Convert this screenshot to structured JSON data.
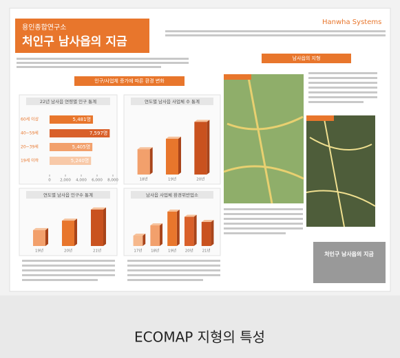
{
  "header": {
    "org": "용인종합연구소",
    "title": "처인구 남사읍의 지금",
    "brand": "Hanwha Systems"
  },
  "sections": {
    "left": "인구/사업체 증가에 따른 환경 변화",
    "right": "남사읍의 지형",
    "footer": "처인구 남사읍의 지금"
  },
  "caption": "ECOMAP 지형의 특성",
  "charts": [
    {
      "type": "hbar",
      "title": "22년 남사읍 연령별 인구 통계",
      "categories": [
        "60세 이상",
        "40~59세",
        "20~39세",
        "19세 이하"
      ],
      "values": [
        5481,
        7597,
        5405,
        5240
      ],
      "value_labels": [
        "5,481명",
        "7,597명",
        "5,405명",
        "5,240명"
      ],
      "colors": [
        "#e8762c",
        "#d9602a",
        "#f2a06c",
        "#f8c9a8"
      ],
      "xlim": [
        0,
        8000
      ],
      "xticks": [
        0,
        {
          "value": 2000,
          "label": "2,000"
        },
        {
          "value": 4000,
          "label": "4,000"
        },
        {
          "value": 6000,
          "label": "6,000"
        },
        {
          "value": 8000,
          "label": "8,000"
        }
      ]
    },
    {
      "type": "bar",
      "title": "연도별 남사읍 사업체 수 통계",
      "categories": [
        "18년",
        "19년",
        "20년"
      ],
      "values": [
        1200,
        1700,
        2500
      ],
      "ylim": [
        0,
        3000
      ],
      "colors": [
        "#f2a06c",
        "#e8762c",
        "#c9521f"
      ]
    },
    {
      "type": "bar",
      "title": "연도별 남사읍 인구수 통계",
      "categories": [
        "19년",
        "20년",
        "21년"
      ],
      "values": [
        10000,
        16000,
        23000
      ],
      "ylim": [
        0,
        26000
      ],
      "colors": [
        "#f2a06c",
        "#e8762c",
        "#c9521f"
      ]
    },
    {
      "type": "bar",
      "title": "남사읍 사업체 환경위반업소",
      "categories": [
        "17년",
        "18년",
        "19년",
        "20년",
        "21년"
      ],
      "values": [
        30,
        60,
        100,
        85,
        70
      ],
      "ylim": [
        0,
        120
      ],
      "colors": [
        "#f6b88c",
        "#f2a06c",
        "#e8762c",
        "#d9602a",
        "#c9521f"
      ]
    }
  ]
}
